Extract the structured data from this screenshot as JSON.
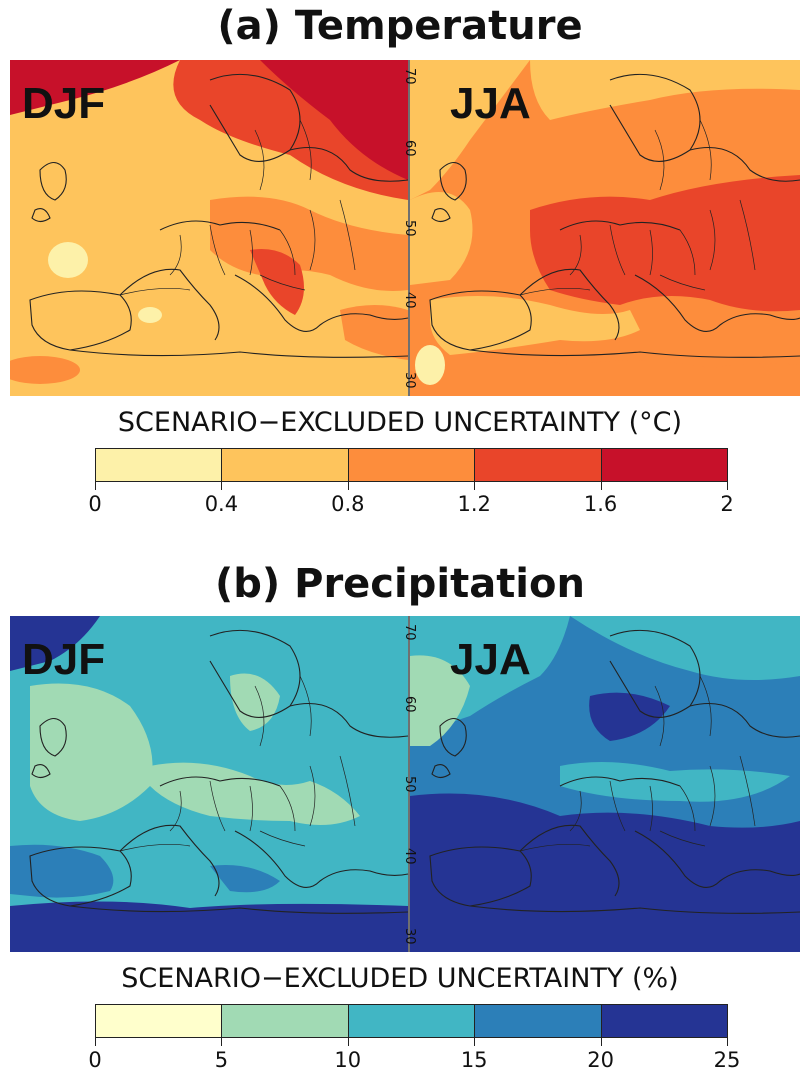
{
  "panels": [
    {
      "title": "(a) Temperature",
      "variable": "temperature",
      "maps": [
        {
          "season": "DJF",
          "latitude_labels": [
            "70",
            "60",
            "50",
            "40",
            "30"
          ]
        },
        {
          "season": "JJA",
          "latitude_labels": [
            "70",
            "60",
            "50",
            "40",
            "30"
          ]
        }
      ],
      "colorbar": {
        "label": "SCENARIO−EXCLUDED UNCERTAINTY (°C)",
        "ticks": [
          "0",
          "0.4",
          "0.8",
          "1.2",
          "1.6",
          "2"
        ],
        "bins": [
          [
            0,
            0.4
          ],
          [
            0.4,
            0.8
          ],
          [
            0.8,
            1.2
          ],
          [
            1.2,
            1.6
          ],
          [
            1.6,
            2
          ]
        ],
        "colors": [
          "#fdf1a9",
          "#fec45c",
          "#fd8d3c",
          "#e9452a",
          "#c7112a"
        ]
      }
    },
    {
      "title": "(b) Precipitation",
      "variable": "precipitation",
      "maps": [
        {
          "season": "DJF",
          "latitude_labels": [
            "70",
            "60",
            "50",
            "40",
            "30"
          ]
        },
        {
          "season": "JJA",
          "latitude_labels": [
            "70",
            "60",
            "50",
            "40",
            "30"
          ]
        }
      ],
      "colorbar": {
        "label": "SCENARIO−EXCLUDED UNCERTAINTY (%)",
        "ticks": [
          "0",
          "5",
          "10",
          "15",
          "20",
          "25"
        ],
        "bins": [
          [
            0,
            5
          ],
          [
            5,
            10
          ],
          [
            10,
            15
          ],
          [
            15,
            20
          ],
          [
            20,
            25
          ]
        ],
        "colors": [
          "#ffffcc",
          "#a1dab4",
          "#41b6c4",
          "#2c7fb8",
          "#253494"
        ]
      }
    }
  ]
}
